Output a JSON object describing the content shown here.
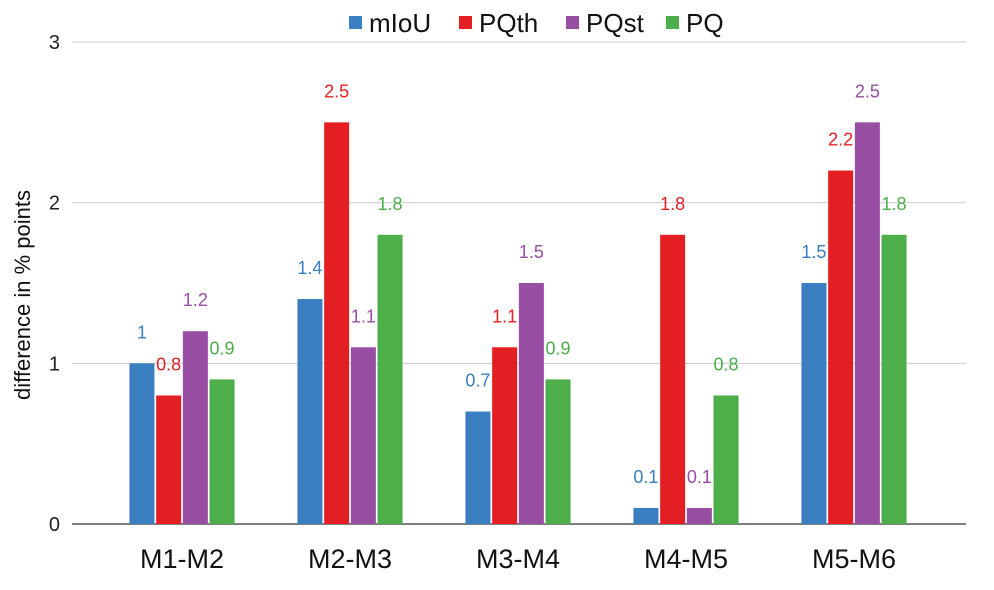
{
  "chart_data": {
    "type": "bar",
    "title": "",
    "xlabel": "",
    "ylabel": "difference in % points",
    "ylim": [
      0,
      3
    ],
    "yticks": [
      "0",
      "1",
      "2",
      "3"
    ],
    "grid": true,
    "legend_position": "top-center",
    "categories": [
      "M1-M2",
      "M2-M3",
      "M3-M4",
      "M4-M5",
      "M5-M6"
    ],
    "series": [
      {
        "name": "mIoU",
        "color": "#3a7fc1",
        "values": [
          1,
          1.4,
          0.7,
          0.1,
          1.5
        ],
        "labels": [
          "1",
          "1.4",
          "0.7",
          "0.1",
          "1.5"
        ]
      },
      {
        "name": "PQth",
        "color": "#e41f23",
        "values": [
          0.8,
          2.5,
          1.1,
          1.8,
          2.2
        ],
        "labels": [
          "0.8",
          "2.5",
          "1.1",
          "1.8",
          "2.2"
        ]
      },
      {
        "name": "PQst",
        "color": "#984ea3",
        "values": [
          1.2,
          1.1,
          1.5,
          0.1,
          2.5
        ],
        "labels": [
          "1.2",
          "1.1",
          "1.5",
          "0.1",
          "2.5"
        ]
      },
      {
        "name": "PQ",
        "color": "#4daf4a",
        "values": [
          0.9,
          1.8,
          0.9,
          0.8,
          1.8
        ],
        "labels": [
          "0.9",
          "1.8",
          "0.9",
          "0.8",
          "1.8"
        ]
      }
    ]
  }
}
